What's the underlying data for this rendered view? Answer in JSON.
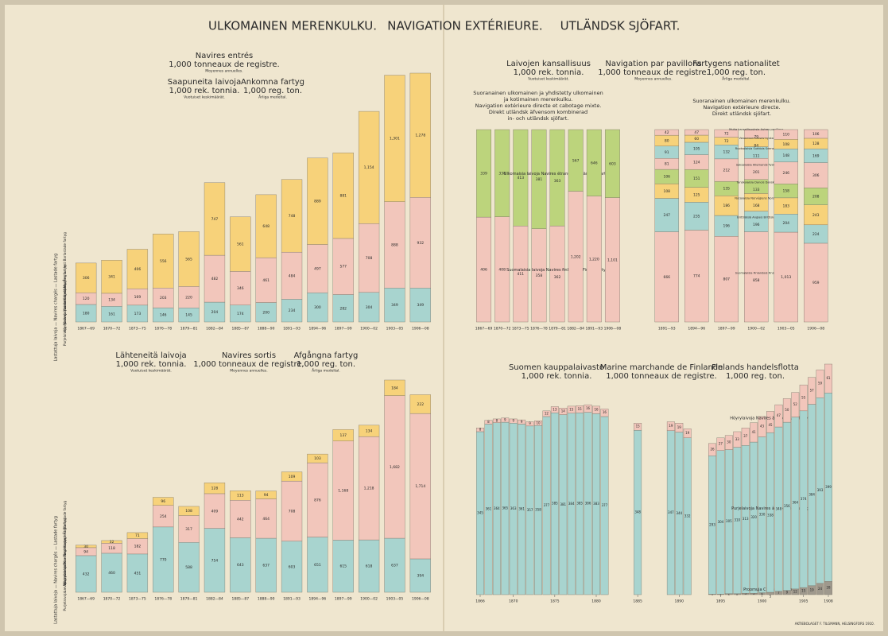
{
  "header": {
    "title": [
      "ULKOMAINEN MERENKULKU.",
      "NAVIGATION EXTÉRIEURE.",
      "UTLÄNDSK SJÖFART."
    ]
  },
  "footer": "AKTIEBOLAGET F. TILGMANN, HELSINGFORS 1910.",
  "chart_data": [
    {
      "type": "bar",
      "stacked": true,
      "title": [
        [
          "Navires entrés",
          "1,000 tonneaux de registre.",
          "Moyennes annuelles."
        ],
        [
          "Saapuneita laivoja",
          "1,000 rek. tonnia.",
          "Vuotuiset keskimäärät."
        ],
        [
          "Ankomna fartyg",
          "1,000 reg. ton.",
          "Årliga medeltal."
        ]
      ],
      "group_label": "Lastattuja laivoja — Navires chargés — Lastade fartyg",
      "categories": [
        "1867—69",
        "1870—72",
        "1873—75",
        "1876—78",
        "1879—81",
        "1882—84",
        "1885—87",
        "1888—90",
        "1891—93",
        "1894—96",
        "1897—99",
        "1900—02",
        "1903—05",
        "1906—08"
      ],
      "series": [
        {
          "name": "Purjelaivoja Navires à voile Segelfartyg",
          "color": "#a8d4cf",
          "values": [
            180,
            161,
            173,
            146,
            145,
            204,
            174,
            200,
            234,
            300,
            282,
            304,
            349,
            349
          ]
        },
        {
          "name": "Höyrylaivoja Navires à vapeur Ångfartyg",
          "color": "#f2c6bb",
          "values": [
            120,
            134,
            169,
            203,
            220,
            482,
            346,
            461,
            484,
            497,
            577,
            708,
            888,
            932
          ]
        },
        {
          "name": "Laivoja painolastissa Navires sur lest Barlastade fartyg",
          "color": "#f7d27a",
          "values": [
            306,
            341,
            406,
            556,
            565,
            747,
            561,
            648,
            748,
            889,
            881,
            1154,
            1301,
            1278
          ],
          "value_labels": [
            "306",
            "341",
            "406",
            "556",
            "565",
            "747",
            "561",
            "648",
            "748",
            "889",
            "881",
            "1,154",
            "1,301",
            "1,278"
          ]
        }
      ]
    },
    {
      "type": "bar",
      "stacked": true,
      "normalize": true,
      "title": [
        [
          "Laivojen kansallisuus",
          "1,000 rek. tonnia.",
          "Vuotuiset keskimäärät."
        ],
        [
          "Navigation par pavillons",
          "1,000 tonneaux de registre.",
          "Moyennes annuelles."
        ],
        [
          "Fartygens nationalitet",
          "1,000 reg. ton.",
          "Årliga medeltal."
        ],
        [
          "Suoranainen ulkomainen ja yhdistetty ulkomainen",
          "ja kotimainen merenkulku.",
          "Navigation extérieure directe et cabotage mixte.",
          "Direkt utländsk äfvensom kombinerad",
          "in- och utländsk sjöfart."
        ]
      ],
      "categories": [
        "1867—69",
        "1870—72",
        "1873—75",
        "1876—78",
        "1879—81",
        "1882—84",
        "1891—93",
        "1906—08"
      ],
      "series": [
        {
          "name": "Suomalaisia laivoja Navires finlandais Finska fartyg",
          "color": "#f2c6bb",
          "values": [
            406,
            408,
            411,
            358,
            362,
            1202,
            1220,
            1101
          ],
          "value_labels": [
            "406",
            "408",
            "411",
            "358",
            "362",
            "1,202",
            "1,220",
            "1,101"
          ]
        },
        {
          "name": "Ulkomaisia laivoja Navires étrangers Utländska fartyg",
          "color": "#bcd47c",
          "values": [
            339,
            338,
            413,
            381,
            363,
            567,
            646,
            603
          ]
        }
      ]
    },
    {
      "type": "bar",
      "stacked": true,
      "normalize": true,
      "title": [
        [
          "Suoranainen ulkomainen merenkulku.",
          "Navigation extérieure directe.",
          "Direkt utländsk sjöfart.",
          ""
        ]
      ],
      "categories": [
        "1891—93",
        "1894—96",
        "1897—99",
        "1900—02",
        "1903—05",
        "1906—08"
      ],
      "series": [
        {
          "name": "Suomalaisia Finlandais Finska",
          "color": "#f2c6bb",
          "values": [
            666,
            774,
            807,
            858,
            1013,
            959
          ],
          "value_labels": [
            "666",
            "774",
            "807",
            "858",
            "1,013",
            "959"
          ]
        },
        {
          "name": "Brittiläisiä Anglais Brittiska",
          "color": "#a8d4cf",
          "values": [
            247,
            235,
            196,
            196,
            204,
            224
          ]
        },
        {
          "name": "Norjalaisia Norvégiens Norska",
          "color": "#f7d27a",
          "values": [
            108,
            125,
            186,
            168,
            183,
            243
          ]
        },
        {
          "name": "Tanskalaisia Danois Danska",
          "color": "#bcd47c",
          "values": [
            106,
            151,
            135,
            133,
            158,
            208
          ]
        },
        {
          "name": "Saksalaisia Allemands Tyska",
          "color": "#f2c6bb",
          "values": [
            81,
            124,
            212,
            201,
            246,
            306
          ]
        },
        {
          "name": "Ruotsalaisia Suédois Svenska",
          "color": "#a8d4cf",
          "values": [
            91,
            105,
            132,
            111,
            148,
            169
          ]
        },
        {
          "name": "Venäläisiä Russes Ryska",
          "color": "#f7d27a",
          "values": [
            80,
            60,
            72,
            84,
            108,
            128
          ]
        },
        {
          "name": "Muita kansallisuuksia Autres pavillons",
          "color": "#f2c6bb",
          "values": [
            42,
            47,
            72,
            79,
            110,
            106
          ]
        }
      ]
    },
    {
      "type": "bar",
      "stacked": true,
      "title": [
        [
          "Lähteneitä laivoja",
          "1,000 rek. tonnia.",
          "Vuotuiset keskimäärät."
        ],
        [
          "Navires sortis",
          "1,000 tonneaux de registre.",
          "Moyennes annuelles."
        ],
        [
          "Afgångna fartyg",
          "1,000 reg. ton.",
          "Årliga medeltal."
        ]
      ],
      "group_label": "Lastattuja laivoja — Navires chargés — Lastade fartyg",
      "categories": [
        "1867—69",
        "1870—72",
        "1873—75",
        "1876—78",
        "1879—81",
        "1882—84",
        "1885—87",
        "1888—90",
        "1891—93",
        "1894—96",
        "1897—99",
        "1900—02",
        "1903—05",
        "1906—08"
      ],
      "series": [
        {
          "name": "Purjelaivoja — Navires à voile — Segelfartyg",
          "color": "#a8d4cf",
          "values": [
            432,
            460,
            451,
            770,
            588,
            754,
            643,
            637,
            603,
            651,
            615,
            618,
            637,
            394
          ]
        },
        {
          "name": "Höyrylaivoja Navires à vapeur Ångfartyg",
          "color": "#f2c6bb",
          "values": [
            94,
            118,
            182,
            254,
            317,
            409,
            442,
            464,
            708,
            876,
            1168,
            1218,
            1682,
            1714
          ],
          "value_labels": [
            "94",
            "118",
            "182",
            "254",
            "317",
            "409",
            "442",
            "464",
            "708",
            "876",
            "1,168",
            "1,218",
            "1,682",
            "1,714"
          ]
        },
        {
          "name": "Laivoja painolastissa Navires sur lest Barlastade fartyg",
          "color": "#f7d27a",
          "values": [
            30,
            32,
            71,
            96,
            108,
            128,
            113,
            94,
            109,
            103,
            137,
            134,
            184,
            222
          ]
        }
      ]
    },
    {
      "type": "bar",
      "stacked": true,
      "title": [
        [
          "Suomen kauppalaivasto",
          "1,000 rek. tonnia."
        ],
        [
          "Marine marchande de Finlande",
          "1,000 tonneaux de registre."
        ],
        [
          "Finlands handelsflotta",
          "1,000 reg. ton."
        ]
      ],
      "x": [
        1866,
        1867,
        1868,
        1869,
        1870,
        1871,
        1872,
        1873,
        1874,
        1875,
        1876,
        1877,
        1878,
        1879,
        1880,
        1881,
        1885,
        1889,
        1890,
        1891,
        1894,
        1895,
        1896,
        1897,
        1898,
        1899,
        1900,
        1901,
        1902,
        1903,
        1904,
        1905,
        1906,
        1907,
        1908
      ],
      "xlim": [
        1866,
        1908
      ],
      "xticks": [
        1866,
        1870,
        1875,
        1880,
        1885,
        1890,
        1895,
        1900,
        1905,
        1908
      ],
      "series": [
        {
          "name": "Proomuja Chalands Pråmar",
          "color": "#9f998d",
          "values": [
            null,
            null,
            null,
            null,
            null,
            null,
            null,
            null,
            null,
            null,
            null,
            null,
            null,
            null,
            null,
            null,
            null,
            null,
            null,
            null,
            1,
            1,
            2,
            2,
            3,
            3,
            4,
            5,
            7,
            9,
            12,
            15,
            19,
            24,
            28
          ]
        },
        {
          "name": "Purjelaivoja Navires à voile Segelfartyg",
          "color": "#a8d4cf",
          "values": [
            345,
            361,
            364,
            365,
            363,
            361,
            357,
            358,
            377,
            385,
            381,
            384,
            385,
            386,
            383,
            377,
            348,
            347,
            344,
            332,
            293,
            304,
            305,
            310,
            313,
            320,
            330,
            338,
            348,
            356,
            364,
            374,
            384,
            393,
            399
          ]
        },
        {
          "name": "Höyrylaivoja Navires à vapeur Ångfartyg",
          "color": "#f2c6bb",
          "values": [
            8,
            8,
            8,
            9,
            9,
            9,
            9,
            10,
            12,
            13,
            14,
            15,
            15,
            16,
            16,
            16,
            15,
            19,
            19,
            19,
            26,
            27,
            30,
            33,
            37,
            41,
            43,
            45,
            47,
            50,
            52,
            55,
            57,
            59,
            61
          ]
        }
      ]
    }
  ]
}
